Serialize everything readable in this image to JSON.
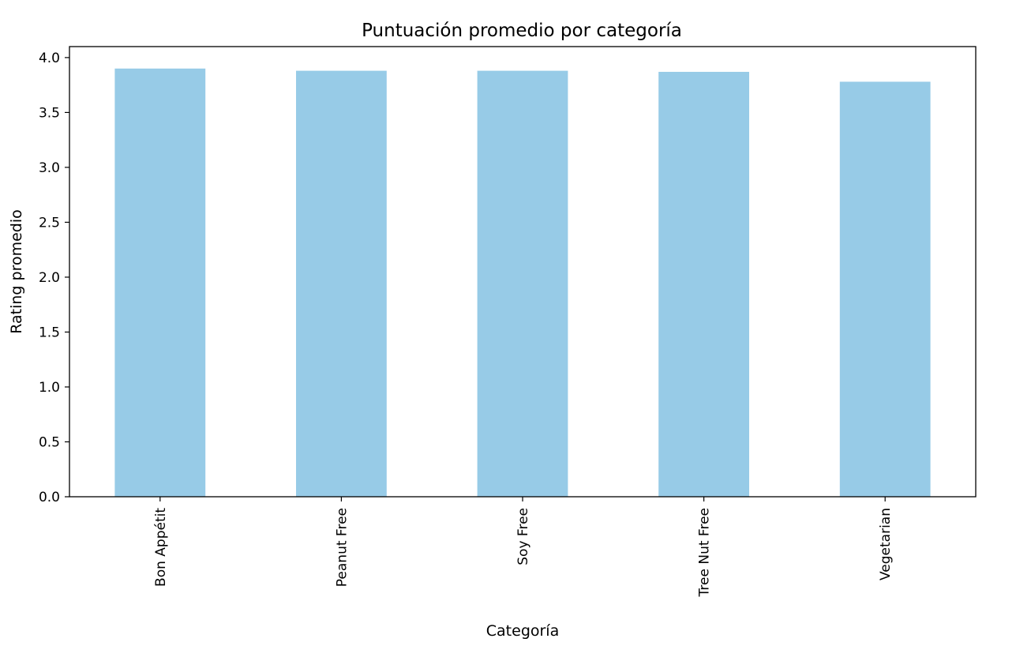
{
  "chart_data": {
    "type": "bar",
    "title": "Puntuación promedio por categoría",
    "xlabel": "Categoría",
    "ylabel": "Rating promedio",
    "categories": [
      "Bon Appétit",
      "Peanut Free",
      "Soy Free",
      "Tree Nut Free",
      "Vegetarian"
    ],
    "values": [
      3.9,
      3.88,
      3.88,
      3.87,
      3.78
    ],
    "ylim": [
      0,
      4.1
    ],
    "yticks": [
      "0.0",
      "0.5",
      "1.0",
      "1.5",
      "2.0",
      "2.5",
      "3.0",
      "3.5",
      "4.0"
    ],
    "bar_color": "#97cbe7",
    "grid": false,
    "legend": "none"
  }
}
